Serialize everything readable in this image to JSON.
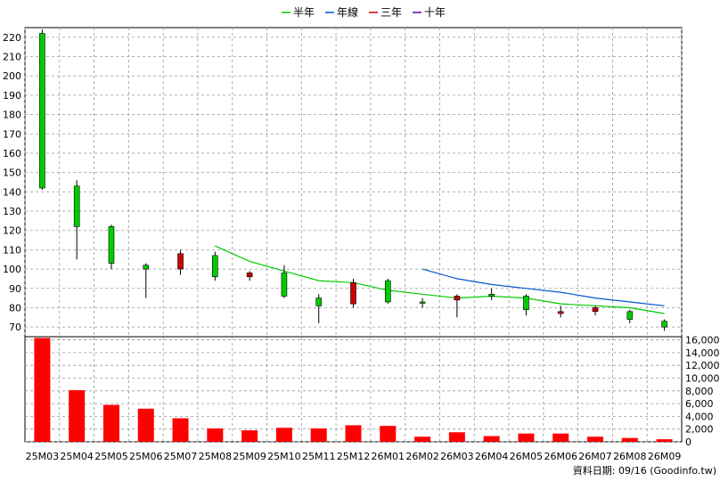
{
  "legend": {
    "items": [
      {
        "label": "半年",
        "color": "#00cc00"
      },
      {
        "label": "年線",
        "color": "#0055cc"
      },
      {
        "label": "三年",
        "color": "#cc0000"
      },
      {
        "label": "十年",
        "color": "#5500aa"
      }
    ]
  },
  "footer": {
    "text": "資料日期: 09/16 (Goodinfo.tw)"
  },
  "colors": {
    "up": "#00cc00",
    "down": "#cc0000",
    "volume": "#ff0000",
    "grid": "#999999"
  },
  "chart_data": [
    {
      "type": "candlestick",
      "categories": [
        "25M03",
        "25M04",
        "25M05",
        "25M06",
        "25M07",
        "25M08",
        "25M09",
        "25M10",
        "25M11",
        "25M12",
        "26M01",
        "26M02",
        "26M03",
        "26M04",
        "26M05",
        "26M06",
        "26M07",
        "26M08",
        "26M09"
      ],
      "ohlc": [
        {
          "open": 142,
          "high": 224,
          "low": 141,
          "close": 222
        },
        {
          "open": 122,
          "high": 146,
          "low": 105,
          "close": 143
        },
        {
          "open": 103,
          "high": 123,
          "low": 100,
          "close": 122
        },
        {
          "open": 100,
          "high": 103,
          "low": 85,
          "close": 102
        },
        {
          "open": 108,
          "high": 110,
          "low": 97,
          "close": 100
        },
        {
          "open": 96,
          "high": 109,
          "low": 94,
          "close": 107
        },
        {
          "open": 98,
          "high": 99,
          "low": 94,
          "close": 96
        },
        {
          "open": 86,
          "high": 102,
          "low": 85,
          "close": 98
        },
        {
          "open": 81,
          "high": 87,
          "low": 72,
          "close": 85
        },
        {
          "open": 93,
          "high": 95,
          "low": 80,
          "close": 82
        },
        {
          "open": 83,
          "high": 95,
          "low": 82,
          "close": 94
        },
        {
          "open": 83,
          "high": 85,
          "low": 80,
          "close": 83
        },
        {
          "open": 86,
          "high": 87,
          "low": 75,
          "close": 84
        },
        {
          "open": 86,
          "high": 90,
          "low": 84,
          "close": 87
        },
        {
          "open": 79,
          "high": 87,
          "low": 76,
          "close": 86
        },
        {
          "open": 78,
          "high": 81,
          "low": 75,
          "close": 77
        },
        {
          "open": 80,
          "high": 81,
          "low": 76,
          "close": 78
        },
        {
          "open": 74,
          "high": 79,
          "low": 72,
          "close": 78
        },
        {
          "open": 70,
          "high": 74,
          "low": 68,
          "close": 73
        }
      ],
      "series": [
        {
          "name": "半年",
          "color": "#00cc00",
          "values": [
            null,
            null,
            null,
            null,
            null,
            112,
            104,
            99,
            94,
            93,
            89,
            87,
            85,
            86,
            85,
            82,
            81,
            80,
            77
          ]
        },
        {
          "name": "年線",
          "color": "#0055cc",
          "values": [
            null,
            null,
            null,
            null,
            null,
            null,
            null,
            null,
            null,
            null,
            null,
            100,
            95,
            92,
            90,
            88,
            85,
            83,
            81
          ]
        }
      ],
      "ylim": [
        65,
        225
      ],
      "yticks": [
        70,
        80,
        90,
        100,
        110,
        120,
        130,
        140,
        150,
        160,
        170,
        180,
        190,
        200,
        210,
        220
      ],
      "grid": true,
      "legend_position": "top-center"
    },
    {
      "type": "bar",
      "categories": [
        "25M03",
        "25M04",
        "25M05",
        "25M06",
        "25M07",
        "25M08",
        "25M09",
        "25M10",
        "25M11",
        "25M12",
        "26M01",
        "26M02",
        "26M03",
        "26M04",
        "26M05",
        "26M06",
        "26M07",
        "26M08",
        "26M09"
      ],
      "values": [
        16300,
        8100,
        5800,
        5200,
        3700,
        2100,
        1800,
        2200,
        2100,
        2600,
        2500,
        800,
        1500,
        900,
        1300,
        1300,
        800,
        600,
        400
      ],
      "ylim": [
        0,
        16500
      ],
      "yticks": [
        0,
        2000,
        4000,
        6000,
        8000,
        10000,
        12000,
        14000,
        16000
      ],
      "ytick_labels": [
        "0",
        "2,000",
        "4,000",
        "6,000",
        "8,000",
        "10,000",
        "12,000",
        "14,000",
        "16,000"
      ],
      "grid": true
    }
  ]
}
